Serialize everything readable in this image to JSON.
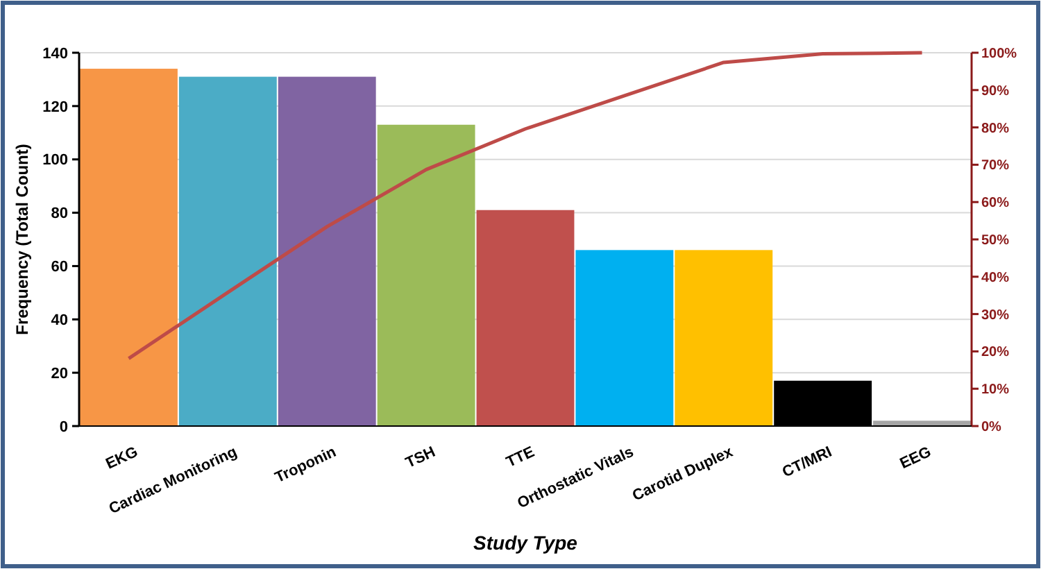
{
  "chart_data": {
    "type": "bar",
    "xlabel": "Study Type",
    "ylabel": "Frequency (Total Count)",
    "categories": [
      "EKG",
      "Cardiac Monitoring",
      "Troponin",
      "TSH",
      "TTE",
      "Orthostatic Vitals",
      "Carotid Duplex",
      "CT/MRI",
      "EEG"
    ],
    "series": [
      {
        "colors": [
          "#f79646",
          "#4bacc6",
          "#8064a2",
          "#9bbb59",
          "#c0504d",
          "#00b0f0",
          "#ffc000",
          "#000000",
          "#a6a6a6"
        ],
        "values": [
          134,
          131,
          131,
          113,
          81,
          66,
          66,
          17,
          2
        ]
      },
      {
        "type": "line",
        "axis": "y2",
        "color": "#be4b48",
        "values": [
          18.1,
          35.8,
          53.4,
          68.7,
          79.6,
          88.5,
          97.4,
          99.7,
          100
        ]
      }
    ],
    "ylim": [
      0,
      140
    ],
    "yticks": [
      0,
      20,
      40,
      60,
      80,
      100,
      120,
      140
    ],
    "y2lim": [
      0,
      100
    ],
    "y2ticks": [
      {
        "value": 0,
        "label": "0%"
      },
      {
        "value": 10,
        "label": "10%"
      },
      {
        "value": 20,
        "label": "20%"
      },
      {
        "value": 30,
        "label": "30%"
      },
      {
        "value": 40,
        "label": "40%"
      },
      {
        "value": 50,
        "label": "50%"
      },
      {
        "value": 60,
        "label": "60%"
      },
      {
        "value": 70,
        "label": "70%"
      },
      {
        "value": 80,
        "label": "80%"
      },
      {
        "value": 90,
        "label": "90%"
      },
      {
        "value": 100,
        "label": "100%"
      }
    ],
    "grid": "y",
    "marker": "none",
    "line_style": "solid"
  }
}
